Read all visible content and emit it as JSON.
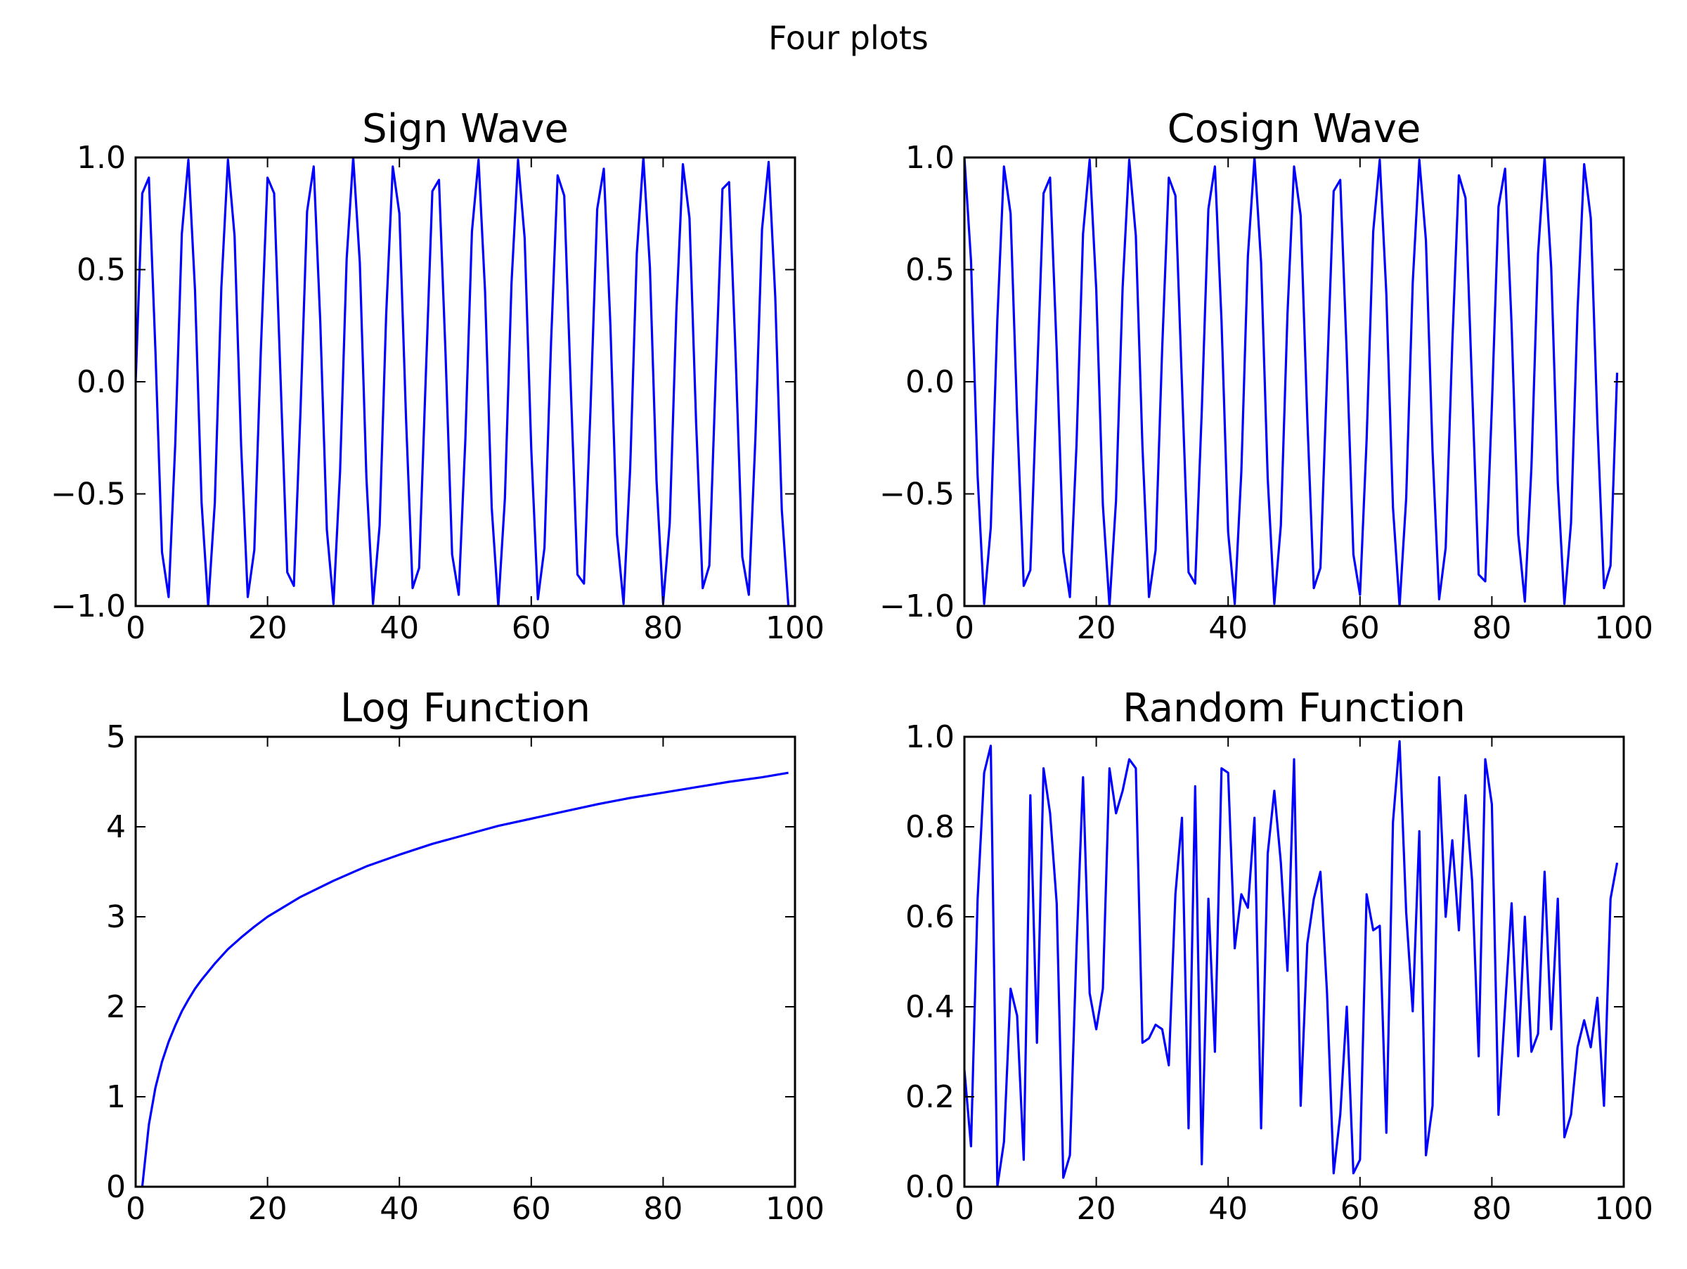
{
  "figure": {
    "suptitle": "Four plots",
    "line_color": "#0000ff"
  },
  "chart_data": [
    {
      "type": "line",
      "title": "Sign Wave",
      "xlabel": "",
      "ylabel": "",
      "function": "sin",
      "x": [
        0,
        1,
        2,
        3,
        4,
        5,
        6,
        7,
        8,
        9,
        10,
        11,
        12,
        13,
        14,
        15,
        16,
        17,
        18,
        19,
        20,
        21,
        22,
        23,
        24,
        25,
        26,
        27,
        28,
        29,
        30,
        31,
        32,
        33,
        34,
        35,
        36,
        37,
        38,
        39,
        40,
        41,
        42,
        43,
        44,
        45,
        46,
        47,
        48,
        49,
        50,
        51,
        52,
        53,
        54,
        55,
        56,
        57,
        58,
        59,
        60,
        61,
        62,
        63,
        64,
        65,
        66,
        67,
        68,
        69,
        70,
        71,
        72,
        73,
        74,
        75,
        76,
        77,
        78,
        79,
        80,
        81,
        82,
        83,
        84,
        85,
        86,
        87,
        88,
        89,
        90,
        91,
        92,
        93,
        94,
        95,
        96,
        97,
        98,
        99
      ],
      "y": [
        0,
        0.84,
        0.91,
        0.14,
        -0.76,
        -0.96,
        -0.28,
        0.66,
        0.99,
        0.41,
        -0.54,
        -1.0,
        -0.54,
        0.42,
        0.99,
        0.65,
        -0.29,
        -0.96,
        -0.75,
        0.15,
        0.91,
        0.84,
        -0.01,
        -0.85,
        -0.91,
        -0.13,
        0.76,
        0.96,
        0.27,
        -0.66,
        -0.99,
        -0.4,
        0.55,
        1.0,
        0.53,
        -0.43,
        -0.99,
        -0.64,
        0.3,
        0.96,
        0.75,
        -0.16,
        -0.92,
        -0.83,
        0.02,
        0.85,
        0.9,
        0.12,
        -0.77,
        -0.95,
        -0.26,
        0.67,
        0.99,
        0.4,
        -0.56,
        -1.0,
        -0.52,
        0.44,
        0.99,
        0.64,
        -0.3,
        -0.97,
        -0.74,
        0.17,
        0.92,
        0.83,
        -0.03,
        -0.86,
        -0.9,
        -0.11,
        0.77,
        0.95,
        0.25,
        -0.68,
        -0.99,
        -0.39,
        0.57,
        1.0,
        0.51,
        -0.44,
        -0.99,
        -0.63,
        0.31,
        0.97,
        0.73,
        -0.18,
        -0.92,
        -0.82,
        0.04,
        0.86,
        0.89,
        0.11,
        -0.78,
        -0.95,
        -0.25,
        0.68,
        0.98,
        0.38,
        -0.57,
        -1.0
      ],
      "xlim": [
        0,
        100
      ],
      "ylim": [
        -1.0,
        1.0
      ],
      "xticks": [
        0,
        20,
        40,
        60,
        80,
        100
      ],
      "yticks": [
        -1.0,
        -0.5,
        0.0,
        0.5,
        1.0
      ],
      "xtick_labels": [
        "0",
        "20",
        "40",
        "60",
        "80",
        "100"
      ],
      "ytick_labels": [
        "−1.0",
        "−0.5",
        "0.0",
        "0.5",
        "1.0"
      ],
      "grid": false
    },
    {
      "type": "line",
      "title": "Cosign Wave",
      "xlabel": "",
      "ylabel": "",
      "function": "cos",
      "x": [
        0,
        1,
        2,
        3,
        4,
        5,
        6,
        7,
        8,
        9,
        10,
        11,
        12,
        13,
        14,
        15,
        16,
        17,
        18,
        19,
        20,
        21,
        22,
        23,
        24,
        25,
        26,
        27,
        28,
        29,
        30,
        31,
        32,
        33,
        34,
        35,
        36,
        37,
        38,
        39,
        40,
        41,
        42,
        43,
        44,
        45,
        46,
        47,
        48,
        49,
        50,
        51,
        52,
        53,
        54,
        55,
        56,
        57,
        58,
        59,
        60,
        61,
        62,
        63,
        64,
        65,
        66,
        67,
        68,
        69,
        70,
        71,
        72,
        73,
        74,
        75,
        76,
        77,
        78,
        79,
        80,
        81,
        82,
        83,
        84,
        85,
        86,
        87,
        88,
        89,
        90,
        91,
        92,
        93,
        94,
        95,
        96,
        97,
        98,
        99
      ],
      "y": [
        1.0,
        0.54,
        -0.42,
        -0.99,
        -0.65,
        0.28,
        0.96,
        0.75,
        -0.15,
        -0.91,
        -0.84,
        0.0,
        0.84,
        0.91,
        0.14,
        -0.76,
        -0.96,
        -0.28,
        0.66,
        0.99,
        0.41,
        -0.55,
        -1.0,
        -0.53,
        0.42,
        0.99,
        0.65,
        -0.29,
        -0.96,
        -0.75,
        0.15,
        0.91,
        0.83,
        -0.01,
        -0.85,
        -0.9,
        -0.13,
        0.77,
        0.96,
        0.27,
        -0.67,
        -0.99,
        -0.4,
        0.56,
        1.0,
        0.53,
        -0.43,
        -0.99,
        -0.64,
        0.3,
        0.96,
        0.74,
        -0.16,
        -0.92,
        -0.83,
        0.02,
        0.85,
        0.9,
        0.12,
        -0.77,
        -0.95,
        -0.26,
        0.67,
        0.99,
        0.39,
        -0.56,
        -1.0,
        -0.52,
        0.44,
        0.99,
        0.63,
        -0.31,
        -0.97,
        -0.74,
        0.17,
        0.92,
        0.82,
        -0.03,
        -0.86,
        -0.89,
        -0.11,
        0.78,
        0.95,
        0.25,
        -0.68,
        -0.98,
        -0.38,
        0.57,
        1.0,
        0.51,
        -0.45,
        -0.99,
        -0.63,
        0.32,
        0.97,
        0.73,
        -0.18,
        -0.92,
        -0.82,
        0.04
      ],
      "xlim": [
        0,
        100
      ],
      "ylim": [
        -1.0,
        1.0
      ],
      "xticks": [
        0,
        20,
        40,
        60,
        80,
        100
      ],
      "yticks": [
        -1.0,
        -0.5,
        0.0,
        0.5,
        1.0
      ],
      "xtick_labels": [
        "0",
        "20",
        "40",
        "60",
        "80",
        "100"
      ],
      "ytick_labels": [
        "−1.0",
        "−0.5",
        "0.0",
        "0.5",
        "1.0"
      ],
      "grid": false
    },
    {
      "type": "line",
      "title": "Log Function",
      "xlabel": "",
      "ylabel": "",
      "function": "ln",
      "x": [
        1,
        2,
        3,
        4,
        5,
        6,
        7,
        8,
        9,
        10,
        12,
        14,
        16,
        18,
        20,
        25,
        30,
        35,
        40,
        45,
        50,
        55,
        60,
        65,
        70,
        75,
        80,
        85,
        90,
        95,
        99
      ],
      "y": [
        0.0,
        0.69,
        1.1,
        1.39,
        1.61,
        1.79,
        1.95,
        2.08,
        2.2,
        2.3,
        2.48,
        2.64,
        2.77,
        2.89,
        3.0,
        3.22,
        3.4,
        3.56,
        3.69,
        3.81,
        3.91,
        4.01,
        4.09,
        4.17,
        4.25,
        4.32,
        4.38,
        4.44,
        4.5,
        4.55,
        4.6
      ],
      "xlim": [
        0,
        100
      ],
      "ylim": [
        0,
        5
      ],
      "xticks": [
        0,
        20,
        40,
        60,
        80,
        100
      ],
      "yticks": [
        0,
        1,
        2,
        3,
        4,
        5
      ],
      "xtick_labels": [
        "0",
        "20",
        "40",
        "60",
        "80",
        "100"
      ],
      "ytick_labels": [
        "0",
        "1",
        "2",
        "3",
        "4",
        "5"
      ],
      "grid": false
    },
    {
      "type": "line",
      "title": "Random Function",
      "xlabel": "",
      "ylabel": "",
      "x": [
        0,
        1,
        2,
        3,
        4,
        5,
        6,
        7,
        8,
        9,
        10,
        11,
        12,
        13,
        14,
        15,
        16,
        17,
        18,
        19,
        20,
        21,
        22,
        23,
        24,
        25,
        26,
        27,
        28,
        29,
        30,
        31,
        32,
        33,
        34,
        35,
        36,
        37,
        38,
        39,
        40,
        41,
        42,
        43,
        44,
        45,
        46,
        47,
        48,
        49,
        50,
        51,
        52,
        53,
        54,
        55,
        56,
        57,
        58,
        59,
        60,
        61,
        62,
        63,
        64,
        65,
        66,
        67,
        68,
        69,
        70,
        71,
        72,
        73,
        74,
        75,
        76,
        77,
        78,
        79,
        80,
        81,
        82,
        83,
        84,
        85,
        86,
        87,
        88,
        89,
        90,
        91,
        92,
        93,
        94,
        95,
        96,
        97,
        98,
        99
      ],
      "y": [
        0.26,
        0.09,
        0.64,
        0.92,
        0.98,
        0.0,
        0.1,
        0.44,
        0.38,
        0.06,
        0.87,
        0.32,
        0.93,
        0.83,
        0.63,
        0.02,
        0.07,
        0.53,
        0.91,
        0.43,
        0.35,
        0.44,
        0.93,
        0.83,
        0.88,
        0.95,
        0.93,
        0.32,
        0.33,
        0.36,
        0.35,
        0.27,
        0.65,
        0.82,
        0.13,
        0.89,
        0.05,
        0.64,
        0.3,
        0.93,
        0.92,
        0.53,
        0.65,
        0.62,
        0.82,
        0.13,
        0.74,
        0.88,
        0.72,
        0.48,
        0.95,
        0.18,
        0.54,
        0.64,
        0.7,
        0.43,
        0.03,
        0.16,
        0.4,
        0.03,
        0.06,
        0.65,
        0.57,
        0.58,
        0.12,
        0.81,
        0.99,
        0.61,
        0.39,
        0.79,
        0.07,
        0.18,
        0.91,
        0.6,
        0.77,
        0.57,
        0.87,
        0.68,
        0.29,
        0.95,
        0.85,
        0.16,
        0.4,
        0.63,
        0.29,
        0.6,
        0.3,
        0.34,
        0.7,
        0.35,
        0.64,
        0.11,
        0.16,
        0.31,
        0.37,
        0.31,
        0.42,
        0.18,
        0.64,
        0.72
      ],
      "xlim": [
        0,
        100
      ],
      "ylim": [
        0.0,
        1.0
      ],
      "xticks": [
        0,
        20,
        40,
        60,
        80,
        100
      ],
      "yticks": [
        0.0,
        0.2,
        0.4,
        0.6,
        0.8,
        1.0
      ],
      "xtick_labels": [
        "0",
        "20",
        "40",
        "60",
        "80",
        "100"
      ],
      "ytick_labels": [
        "0.0",
        "0.2",
        "0.4",
        "0.6",
        "0.8",
        "1.0"
      ],
      "grid": false
    }
  ]
}
